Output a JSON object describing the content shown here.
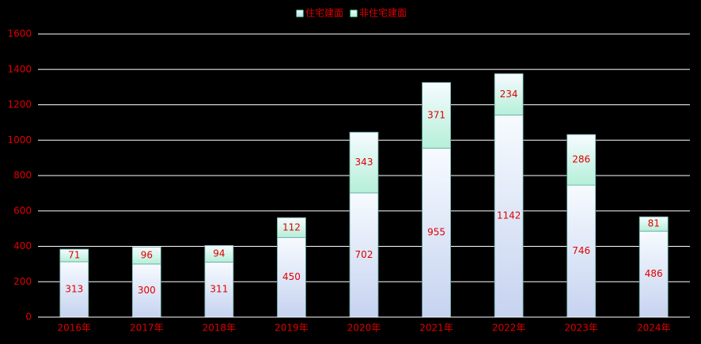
{
  "chart_data": {
    "type": "stacked-bar",
    "categories": [
      "2016年",
      "2017年",
      "2018年",
      "2019年",
      "2020年",
      "2021年",
      "2022年",
      "2023年",
      "2024年"
    ],
    "series": [
      {
        "name": "住宅建面",
        "color": "#c6d3f0",
        "values": [
          313,
          300,
          311,
          450,
          702,
          955,
          1142,
          746,
          486
        ]
      },
      {
        "name": "非住宅建面",
        "color": "#b5efd9",
        "values": [
          71,
          96,
          94,
          112,
          343,
          371,
          234,
          286,
          81
        ]
      }
    ],
    "ylim": [
      0,
      1600
    ],
    "yticks": [
      0,
      200,
      400,
      600,
      800,
      1000,
      1200,
      1400,
      1600
    ],
    "grid": true,
    "legend": "top"
  }
}
